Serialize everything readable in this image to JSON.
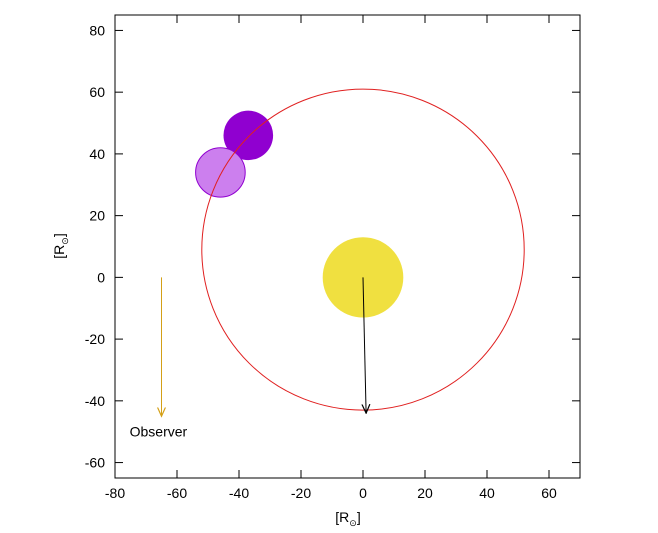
{
  "chart_data": {
    "type": "scatter",
    "title": "",
    "xlabel": "[R",
    "xlabel_sub": "⊙",
    "xlabel_end": "]",
    "ylabel": "[R",
    "ylabel_sub": "⊙",
    "ylabel_end": "]",
    "xlim": [
      -80,
      70
    ],
    "ylim": [
      -65,
      85
    ],
    "x_ticks": [
      -80,
      -60,
      -40,
      -20,
      0,
      20,
      40,
      60
    ],
    "x_tick_labels": [
      "-80",
      "-60",
      "-40",
      "-20",
      "0",
      "20",
      "40",
      "60"
    ],
    "y_ticks": [
      -60,
      -40,
      -20,
      0,
      20,
      40,
      60,
      80
    ],
    "y_tick_labels": [
      "-60",
      "-40",
      "-20",
      "0",
      "20",
      "40",
      "60",
      "80"
    ],
    "grid": false,
    "orbit": {
      "cx": 0,
      "cy": 9,
      "r": 52,
      "color": "#e02020"
    },
    "bodies": [
      {
        "cx": 0,
        "cy": 0,
        "r": 13,
        "fill": "#f0e040",
        "stroke": "none"
      },
      {
        "cx": -37,
        "cy": 46,
        "r": 8,
        "fill": "#9000d0",
        "stroke": "none"
      },
      {
        "cx": -46,
        "cy": 34,
        "r": 8,
        "fill": "#cc7fee",
        "stroke": "#9000d0"
      }
    ],
    "arrows": [
      {
        "x1": 0,
        "y1": 0,
        "x2": 1,
        "y2": -44,
        "color": "#000000"
      },
      {
        "x1": -65,
        "y1": 0,
        "x2": -65,
        "y2": -45,
        "color": "#d4a017"
      }
    ],
    "annotations": [
      {
        "text": "Observer",
        "x": -66,
        "y": -51.5
      }
    ]
  }
}
